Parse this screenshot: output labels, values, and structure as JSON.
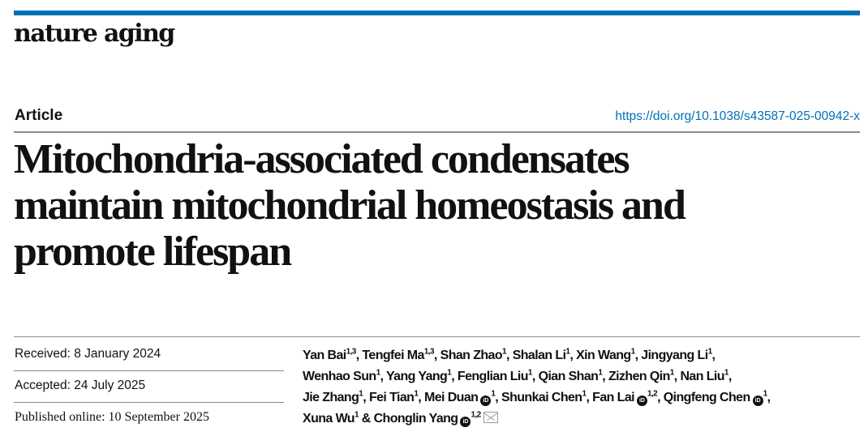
{
  "journal": "nature aging",
  "article_type": "Article",
  "doi": "https://doi.org/10.1038/s43587-025-00942-x",
  "title_lines": [
    "Mitochondria-associated condensates",
    "maintain mitochondrial homeostasis and",
    "promote lifespan"
  ],
  "dates": {
    "received": "Received: 8 January 2024",
    "accepted": "Accepted: 24 July 2025",
    "published": "Published online: 10 September 2025"
  },
  "colors": {
    "accent": "#0070b8"
  },
  "author_lines": [
    [
      {
        "name": "Yan Bai",
        "sup": "1,3"
      },
      {
        "name": "Tengfei Ma",
        "sup": "1,3"
      },
      {
        "name": "Shan Zhao",
        "sup": "1"
      },
      {
        "name": "Shalan Li",
        "sup": "1"
      },
      {
        "name": "Xin Wang",
        "sup": "1"
      },
      {
        "name": "Jingyang Li",
        "sup": "1"
      }
    ],
    [
      {
        "name": "Wenhao Sun",
        "sup": "1"
      },
      {
        "name": "Yang Yang",
        "sup": "1"
      },
      {
        "name": "Fenglian Liu",
        "sup": "1"
      },
      {
        "name": "Qian Shan",
        "sup": "1"
      },
      {
        "name": "Zizhen Qin",
        "sup": "1"
      },
      {
        "name": "Nan Liu",
        "sup": "1"
      }
    ],
    [
      {
        "name": "Jie Zhang",
        "sup": "1"
      },
      {
        "name": "Fei Tian",
        "sup": "1"
      },
      {
        "name": "Mei Duan",
        "sup": "1",
        "orcid": true
      },
      {
        "name": "Shunkai Chen",
        "sup": "1"
      },
      {
        "name": "Fan Lai",
        "sup": "1,2",
        "orcid": true
      },
      {
        "name": "Qingfeng Chen",
        "sup": "1",
        "orcid": true
      }
    ],
    [
      {
        "name": "Xuna Wu",
        "sup": "1"
      },
      {
        "name": "Chonglin Yang",
        "sup": "1,2",
        "orcid": true,
        "corresponding": true
      }
    ]
  ]
}
